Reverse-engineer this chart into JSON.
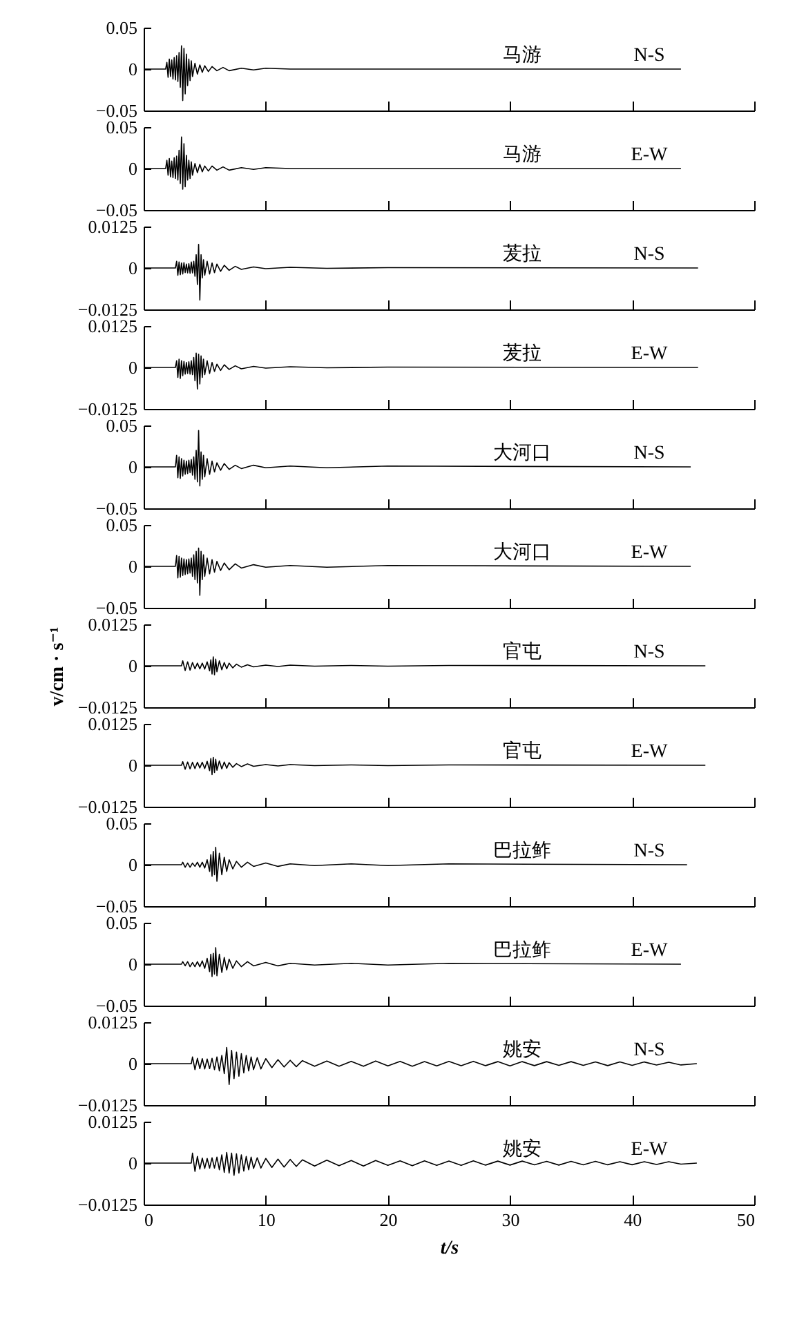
{
  "chart_data": [
    {
      "type": "line",
      "annotations": [
        "马游",
        "N-S"
      ],
      "xlim": [
        0,
        50
      ],
      "xticks": [
        0,
        10,
        20,
        30,
        40,
        50
      ],
      "ylim": [
        -0.05,
        0.05
      ],
      "yticks": [
        -0.05,
        0,
        0.05
      ],
      "tick_labels": "y",
      "x": [
        0,
        1.8,
        1.9,
        2.0,
        2.1,
        2.2,
        2.3,
        2.4,
        2.5,
        2.6,
        2.7,
        2.8,
        2.9,
        3.0,
        3.1,
        3.2,
        3.3,
        3.4,
        3.5,
        3.6,
        3.7,
        3.8,
        3.9,
        4.0,
        4.2,
        4.4,
        4.6,
        4.8,
        5.0,
        5.3,
        5.6,
        6.0,
        6.5,
        7,
        8,
        9,
        10,
        12,
        15,
        44
      ],
      "series": [
        {
          "color": "#000000",
          "values": [
            0,
            0,
            0.008,
            -0.01,
            0.012,
            -0.009,
            0.011,
            -0.012,
            0.014,
            -0.013,
            0.016,
            -0.015,
            0.02,
            -0.022,
            0.028,
            -0.038,
            0.025,
            -0.03,
            0.018,
            -0.02,
            0.012,
            -0.014,
            0.01,
            -0.009,
            0.007,
            -0.006,
            0.005,
            -0.004,
            0.004,
            -0.003,
            0.003,
            -0.002,
            0.002,
            -0.002,
            0.001,
            -0.001,
            0.001,
            0,
            0,
            0
          ]
        }
      ]
    },
    {
      "type": "line",
      "annotations": [
        "马游",
        "E-W"
      ],
      "xlim": [
        0,
        50
      ],
      "xticks": [
        0,
        10,
        20,
        30,
        40,
        50
      ],
      "ylim": [
        -0.05,
        0.05
      ],
      "yticks": [
        -0.05,
        0,
        0.05
      ],
      "tick_labels": "y",
      "x": [
        0,
        1.8,
        1.9,
        2.0,
        2.1,
        2.2,
        2.3,
        2.4,
        2.5,
        2.6,
        2.7,
        2.8,
        2.9,
        3.0,
        3.1,
        3.2,
        3.3,
        3.4,
        3.5,
        3.6,
        3.7,
        3.8,
        3.9,
        4.0,
        4.2,
        4.4,
        4.6,
        4.8,
        5.0,
        5.3,
        5.6,
        6.0,
        6.5,
        7,
        8,
        9,
        10,
        12,
        15,
        44
      ],
      "series": [
        {
          "color": "#000000",
          "values": [
            0,
            0,
            0.01,
            -0.008,
            0.012,
            -0.01,
            0.009,
            -0.011,
            0.013,
            -0.012,
            0.015,
            -0.014,
            0.022,
            -0.018,
            0.038,
            -0.025,
            0.03,
            -0.022,
            0.016,
            -0.014,
            0.01,
            -0.012,
            0.008,
            -0.008,
            0.006,
            -0.005,
            0.005,
            -0.004,
            0.003,
            -0.003,
            0.003,
            -0.002,
            0.002,
            -0.002,
            0.001,
            -0.001,
            0.001,
            0,
            0,
            0
          ]
        }
      ]
    },
    {
      "type": "line",
      "annotations": [
        "茇拉",
        "N-S"
      ],
      "xlim": [
        0,
        50
      ],
      "xticks": [
        0,
        10,
        20,
        30,
        40,
        50
      ],
      "ylim": [
        -0.0125,
        0.0125
      ],
      "yticks": [
        -0.0125,
        0,
        0.0125
      ],
      "tick_labels": "y",
      "x": [
        0,
        2.6,
        2.7,
        2.8,
        2.9,
        3.0,
        3.1,
        3.2,
        3.3,
        3.4,
        3.5,
        3.6,
        3.7,
        3.8,
        3.9,
        4.0,
        4.1,
        4.2,
        4.3,
        4.4,
        4.5,
        4.6,
        4.7,
        4.8,
        4.9,
        5.0,
        5.2,
        5.4,
        5.6,
        5.8,
        6.0,
        6.3,
        6.6,
        7.0,
        7.5,
        8,
        9,
        10,
        12,
        15,
        20,
        45.4
      ],
      "series": [
        {
          "color": "#000000",
          "values": [
            0,
            0,
            0.002,
            -0.0022,
            0.0018,
            -0.002,
            0.0015,
            -0.0018,
            0.0016,
            -0.0014,
            0.0012,
            -0.0015,
            0.0013,
            -0.0016,
            0.0018,
            -0.0015,
            0.002,
            -0.0025,
            0.004,
            -0.005,
            0.0071,
            -0.0097,
            0.004,
            -0.003,
            0.0025,
            -0.0022,
            0.002,
            -0.0018,
            0.0015,
            -0.0014,
            0.0012,
            -0.001,
            0.0008,
            -0.0007,
            0.0005,
            -0.0004,
            0.0003,
            -0.0002,
            0.0002,
            -0.0001,
            0.0001,
            0
          ]
        }
      ]
    },
    {
      "type": "line",
      "annotations": [
        "茇拉",
        "E-W"
      ],
      "xlim": [
        0,
        50
      ],
      "xticks": [
        0,
        10,
        20,
        30,
        40,
        50
      ],
      "ylim": [
        -0.0125,
        0.0125
      ],
      "yticks": [
        -0.0125,
        0,
        0.0125
      ],
      "tick_labels": "y",
      "x": [
        0,
        2.6,
        2.7,
        2.8,
        2.9,
        3.0,
        3.1,
        3.2,
        3.3,
        3.4,
        3.5,
        3.6,
        3.7,
        3.8,
        3.9,
        4.0,
        4.1,
        4.2,
        4.3,
        4.4,
        4.5,
        4.6,
        4.7,
        4.8,
        4.9,
        5.0,
        5.2,
        5.4,
        5.6,
        5.8,
        6.0,
        6.3,
        6.6,
        7.0,
        7.5,
        8,
        9,
        10,
        12,
        15,
        20,
        45.4
      ],
      "series": [
        {
          "color": "#000000",
          "values": [
            0,
            0,
            0.002,
            -0.003,
            0.0025,
            -0.0033,
            0.002,
            -0.0025,
            0.0018,
            -0.002,
            0.0015,
            -0.0018,
            0.0017,
            -0.002,
            0.002,
            -0.0022,
            0.003,
            -0.004,
            0.0043,
            -0.0065,
            0.004,
            -0.005,
            0.0035,
            -0.003,
            0.0025,
            -0.0022,
            0.002,
            -0.0018,
            0.0015,
            -0.0012,
            0.001,
            -0.0009,
            0.0008,
            -0.0006,
            0.0005,
            -0.0004,
            0.0003,
            -0.0002,
            0.0002,
            -0.0001,
            0.0001,
            0
          ]
        }
      ]
    },
    {
      "type": "line",
      "annotations": [
        "大河口",
        "N-S"
      ],
      "xlim": [
        0,
        50
      ],
      "xticks": [
        0,
        10,
        20,
        30,
        40,
        50
      ],
      "ylim": [
        -0.05,
        0.05
      ],
      "yticks": [
        -0.05,
        0,
        0.05
      ],
      "tick_labels": "y",
      "x": [
        0,
        2.6,
        2.7,
        2.8,
        2.9,
        3.0,
        3.1,
        3.2,
        3.3,
        3.4,
        3.5,
        3.6,
        3.7,
        3.8,
        3.9,
        4.0,
        4.1,
        4.2,
        4.3,
        4.4,
        4.5,
        4.6,
        4.7,
        4.8,
        4.9,
        5.0,
        5.2,
        5.4,
        5.6,
        5.8,
        6.0,
        6.3,
        6.6,
        7.0,
        7.5,
        8,
        9,
        10,
        12,
        15,
        20,
        44.8
      ],
      "series": [
        {
          "color": "#000000",
          "values": [
            0,
            0,
            0.014,
            -0.013,
            0.012,
            -0.014,
            0.01,
            -0.011,
            0.008,
            -0.009,
            0.007,
            -0.008,
            0.008,
            -0.007,
            0.009,
            -0.01,
            0.012,
            -0.015,
            0.02,
            -0.018,
            0.044,
            -0.023,
            0.018,
            -0.015,
            0.014,
            -0.012,
            0.01,
            -0.009,
            0.007,
            -0.006,
            0.005,
            -0.004,
            0.004,
            -0.003,
            0.002,
            -0.002,
            0.002,
            -0.001,
            0.001,
            -0.001,
            0.001,
            0
          ]
        }
      ]
    },
    {
      "type": "line",
      "annotations": [
        "大河口",
        "E-W"
      ],
      "xlim": [
        0,
        50
      ],
      "xticks": [
        0,
        10,
        20,
        30,
        40,
        50
      ],
      "ylim": [
        -0.05,
        0.05
      ],
      "yticks": [
        -0.05,
        0,
        0.05
      ],
      "tick_labels": "y",
      "x": [
        0,
        2.6,
        2.7,
        2.8,
        2.9,
        3.0,
        3.1,
        3.2,
        3.3,
        3.4,
        3.5,
        3.6,
        3.7,
        3.8,
        3.9,
        4.0,
        4.1,
        4.2,
        4.3,
        4.4,
        4.5,
        4.6,
        4.7,
        4.8,
        4.9,
        5.0,
        5.2,
        5.4,
        5.6,
        5.8,
        6.0,
        6.3,
        6.6,
        7.0,
        7.5,
        8,
        9,
        10,
        12,
        15,
        20,
        44.8
      ],
      "series": [
        {
          "color": "#000000",
          "values": [
            0,
            0,
            0.013,
            -0.014,
            0.012,
            -0.013,
            0.01,
            -0.011,
            0.009,
            -0.01,
            0.008,
            -0.009,
            0.009,
            -0.008,
            0.01,
            -0.012,
            0.014,
            -0.016,
            0.018,
            -0.02,
            0.022,
            -0.035,
            0.018,
            -0.016,
            0.014,
            -0.012,
            0.01,
            -0.009,
            0.008,
            -0.007,
            0.006,
            -0.005,
            0.004,
            -0.004,
            0.003,
            -0.002,
            0.002,
            -0.001,
            0.001,
            -0.001,
            0.001,
            0
          ]
        }
      ]
    },
    {
      "type": "line",
      "annotations": [
        "官屯",
        "N-S"
      ],
      "ylabel": "v/cm · s⁻¹",
      "xlim": [
        0,
        50
      ],
      "xticks": [
        0,
        10,
        20,
        30,
        40,
        50
      ],
      "ylim": [
        -0.0125,
        0.0125
      ],
      "yticks": [
        -0.0125,
        0,
        0.0125
      ],
      "tick_labels": "y",
      "x": [
        0,
        3.1,
        3.2,
        3.4,
        3.6,
        3.8,
        4.0,
        4.2,
        4.4,
        4.6,
        4.8,
        5.0,
        5.2,
        5.4,
        5.5,
        5.6,
        5.7,
        5.8,
        5.9,
        6.0,
        6.2,
        6.4,
        6.6,
        6.8,
        7.0,
        7.3,
        7.6,
        8.0,
        8.5,
        9,
        10,
        11,
        12,
        14,
        17,
        20,
        25,
        46
      ],
      "series": [
        {
          "color": "#000000",
          "values": [
            0,
            0,
            0.0015,
            -0.0014,
            0.0012,
            -0.0013,
            0.001,
            -0.0009,
            0.0008,
            -0.0009,
            0.0008,
            -0.001,
            0.0012,
            -0.0015,
            0.0018,
            -0.0025,
            0.0027,
            -0.0027,
            0.002,
            -0.0018,
            0.0015,
            -0.0012,
            0.001,
            -0.0009,
            0.0008,
            -0.0006,
            0.0005,
            -0.0004,
            0.0003,
            -0.0003,
            0.0002,
            -0.0002,
            0.0002,
            -0.0001,
            0.0001,
            -0.0001,
            0.0001,
            0
          ]
        }
      ]
    },
    {
      "type": "line",
      "annotations": [
        "官屯",
        "E-W"
      ],
      "xlim": [
        0,
        50
      ],
      "xticks": [
        0,
        10,
        20,
        30,
        40,
        50
      ],
      "ylim": [
        -0.0125,
        0.0125
      ],
      "yticks": [
        -0.0125,
        0,
        0.0125
      ],
      "tick_labels": "y",
      "x": [
        0,
        3.1,
        3.2,
        3.4,
        3.6,
        3.8,
        4.0,
        4.2,
        4.4,
        4.6,
        4.8,
        5.0,
        5.2,
        5.4,
        5.5,
        5.6,
        5.7,
        5.8,
        5.9,
        6.0,
        6.2,
        6.4,
        6.6,
        6.8,
        7.0,
        7.3,
        7.6,
        8.0,
        8.5,
        9,
        10,
        11,
        12,
        14,
        17,
        20,
        25,
        46
      ],
      "series": [
        {
          "color": "#000000",
          "values": [
            0,
            0,
            0.0011,
            -0.0012,
            0.001,
            -0.0011,
            0.0009,
            -0.001,
            0.0009,
            -0.0008,
            0.0009,
            -0.001,
            0.0012,
            -0.0016,
            0.002,
            -0.0028,
            0.0024,
            -0.0022,
            0.0018,
            -0.0015,
            0.0013,
            -0.0011,
            0.001,
            -0.0009,
            0.0008,
            -0.0006,
            0.0005,
            -0.0004,
            0.0004,
            -0.0003,
            0.0002,
            -0.0002,
            0.0002,
            -0.0001,
            0.0001,
            -0.0001,
            0.0001,
            0
          ]
        }
      ]
    },
    {
      "type": "line",
      "annotations": [
        "巴拉鲊",
        "N-S"
      ],
      "xlim": [
        0,
        50
      ],
      "xticks": [
        0,
        10,
        20,
        30,
        40,
        50
      ],
      "ylim": [
        -0.05,
        0.05
      ],
      "yticks": [
        -0.05,
        0,
        0.05
      ],
      "tick_labels": "y",
      "x": [
        0,
        3.1,
        3.2,
        3.4,
        3.6,
        3.8,
        4.0,
        4.2,
        4.4,
        4.6,
        4.8,
        5.0,
        5.2,
        5.4,
        5.5,
        5.6,
        5.7,
        5.8,
        5.9,
        6.0,
        6.2,
        6.4,
        6.6,
        6.8,
        7.0,
        7.3,
        7.6,
        8.0,
        8.5,
        9,
        10,
        11,
        12,
        14,
        17,
        20,
        25,
        44.5
      ],
      "series": [
        {
          "color": "#000000",
          "values": [
            0,
            0,
            0.003,
            -0.003,
            0.002,
            -0.003,
            0.002,
            -0.002,
            0.003,
            -0.003,
            0.003,
            -0.004,
            0.006,
            -0.008,
            0.012,
            -0.014,
            0.016,
            -0.012,
            0.021,
            -0.02,
            0.014,
            -0.012,
            0.009,
            -0.008,
            0.006,
            -0.005,
            0.004,
            -0.003,
            0.003,
            -0.002,
            0.002,
            -0.002,
            0.001,
            -0.001,
            0.001,
            -0.001,
            0.001,
            0
          ]
        }
      ]
    },
    {
      "type": "line",
      "annotations": [
        "巴拉鲊",
        "E-W"
      ],
      "xlim": [
        0,
        50
      ],
      "xticks": [
        0,
        10,
        20,
        30,
        40,
        50
      ],
      "ylim": [
        -0.05,
        0.05
      ],
      "yticks": [
        -0.05,
        0,
        0.05
      ],
      "tick_labels": "y",
      "x": [
        0,
        3.1,
        3.2,
        3.4,
        3.6,
        3.8,
        4.0,
        4.2,
        4.4,
        4.6,
        4.8,
        5.0,
        5.2,
        5.4,
        5.5,
        5.6,
        5.7,
        5.8,
        5.9,
        6.0,
        6.2,
        6.4,
        6.6,
        6.8,
        7.0,
        7.3,
        7.6,
        8.0,
        8.5,
        9,
        10,
        11,
        12,
        14,
        17,
        20,
        25,
        44
      ],
      "series": [
        {
          "color": "#000000",
          "values": [
            0,
            0,
            0.003,
            -0.002,
            0.003,
            -0.003,
            0.002,
            -0.003,
            0.003,
            -0.003,
            0.004,
            -0.005,
            0.007,
            -0.009,
            0.012,
            -0.015,
            0.013,
            -0.012,
            0.02,
            -0.014,
            0.012,
            -0.01,
            0.008,
            -0.007,
            0.006,
            -0.005,
            0.004,
            -0.003,
            0.003,
            -0.002,
            0.002,
            -0.002,
            0.001,
            -0.001,
            0.001,
            -0.001,
            0.001,
            0
          ]
        }
      ]
    },
    {
      "type": "line",
      "annotations": [
        "姚安",
        "N-S"
      ],
      "xlim": [
        0,
        50
      ],
      "xticks": [
        0,
        10,
        20,
        30,
        40,
        50
      ],
      "ylim": [
        -0.0125,
        0.0125
      ],
      "yticks": [
        -0.0125,
        0,
        0.0125
      ],
      "tick_labels": "y",
      "x": [
        0,
        3.9,
        4.0,
        4.2,
        4.4,
        4.6,
        4.8,
        5.0,
        5.2,
        5.4,
        5.6,
        5.8,
        6.0,
        6.2,
        6.4,
        6.6,
        6.8,
        7.0,
        7.2,
        7.4,
        7.6,
        7.8,
        8.0,
        8.2,
        8.4,
        8.6,
        8.8,
        9.0,
        9.3,
        9.6,
        10,
        10.5,
        11,
        11.5,
        12,
        12.5,
        13,
        14,
        15,
        16,
        17,
        18,
        19,
        20,
        21,
        22,
        23,
        24,
        25,
        26,
        27,
        28,
        29,
        30,
        31,
        32,
        33,
        34,
        35,
        36,
        37,
        38,
        39,
        40,
        41,
        42,
        43,
        44,
        45.3
      ],
      "series": [
        {
          "color": "#000000",
          "values": [
            0,
            0,
            0.002,
            -0.0018,
            0.0016,
            -0.0015,
            0.0015,
            -0.0016,
            0.0014,
            -0.0015,
            0.0016,
            -0.0018,
            0.002,
            -0.0022,
            0.0025,
            -0.003,
            0.0049,
            -0.0063,
            0.004,
            -0.0045,
            0.0035,
            -0.0038,
            0.003,
            -0.0028,
            0.0025,
            -0.0022,
            0.002,
            -0.0018,
            0.0018,
            -0.0016,
            0.0015,
            -0.0012,
            0.0012,
            -0.001,
            0.001,
            -0.0009,
            0.0009,
            -0.0008,
            0.0008,
            -0.0008,
            0.0007,
            -0.0008,
            0.0008,
            -0.0007,
            0.0007,
            -0.0008,
            0.0006,
            -0.0007,
            0.0007,
            -0.0006,
            0.0007,
            -0.0006,
            0.0006,
            -0.0007,
            0.0006,
            -0.0006,
            0.0006,
            -0.0005,
            0.0006,
            -0.0005,
            0.0005,
            -0.0006,
            0.0005,
            -0.0005,
            0.0005,
            -0.0004,
            0.0004,
            -0.0004,
            0
          ]
        }
      ]
    },
    {
      "type": "line",
      "annotations": [
        "姚安",
        "E-W"
      ],
      "xlabel": "t/s",
      "xlim": [
        0,
        50
      ],
      "xticks": [
        0,
        10,
        20,
        30,
        40,
        50
      ],
      "ylim": [
        -0.0125,
        0.0125
      ],
      "yticks": [
        -0.0125,
        0,
        0.0125
      ],
      "x": [
        0,
        3.9,
        4.0,
        4.2,
        4.4,
        4.6,
        4.8,
        5.0,
        5.2,
        5.4,
        5.6,
        5.8,
        6.0,
        6.2,
        6.4,
        6.6,
        6.8,
        7.0,
        7.2,
        7.4,
        7.6,
        7.8,
        8.0,
        8.2,
        8.4,
        8.6,
        8.8,
        9.0,
        9.3,
        9.6,
        10,
        10.5,
        11,
        11.5,
        12,
        12.5,
        13,
        14,
        15,
        16,
        17,
        18,
        19,
        20,
        21,
        22,
        23,
        24,
        25,
        26,
        27,
        28,
        29,
        30,
        31,
        32,
        33,
        34,
        35,
        36,
        37,
        38,
        39,
        40,
        41,
        42,
        43,
        44,
        45.3
      ],
      "series": [
        {
          "color": "#000000",
          "values": [
            0,
            0,
            0.003,
            -0.0025,
            0.002,
            -0.0018,
            0.0015,
            -0.0016,
            0.0014,
            -0.0015,
            0.0016,
            -0.0015,
            0.0018,
            -0.002,
            0.0025,
            -0.0028,
            0.0032,
            -0.003,
            0.003,
            -0.0037,
            0.0028,
            -0.003,
            0.0025,
            -0.0024,
            0.002,
            -0.002,
            0.0018,
            -0.0016,
            0.0016,
            -0.0015,
            0.0014,
            -0.0013,
            0.0012,
            -0.0012,
            0.0011,
            -0.001,
            0.001,
            -0.0009,
            0.0009,
            -0.0008,
            0.0008,
            -0.0009,
            0.0008,
            -0.0007,
            0.0007,
            -0.0008,
            0.0007,
            -0.0007,
            0.0006,
            -0.0007,
            0.0007,
            -0.0006,
            0.0006,
            -0.0006,
            0.0006,
            -0.0005,
            0.0005,
            -0.0006,
            0.0005,
            -0.0005,
            0.0005,
            -0.0005,
            0.0004,
            -0.0005,
            0.0004,
            -0.0004,
            0.0004,
            -0.0003,
            0
          ]
        }
      ]
    }
  ]
}
